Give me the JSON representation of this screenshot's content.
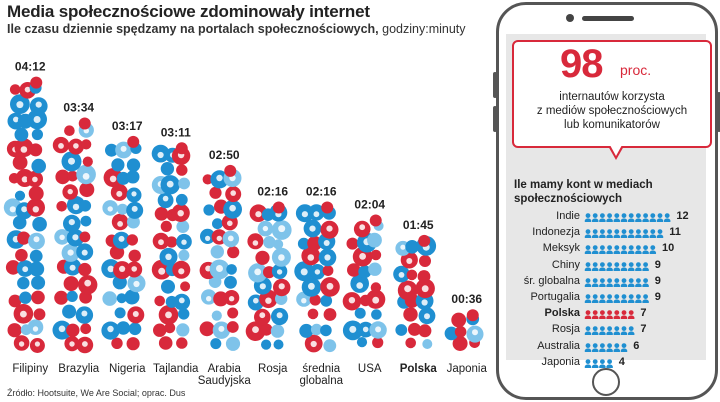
{
  "header": {
    "title": "Media społecznościowe zdominowały internet",
    "subtitle": "Ile czasu dziennie spędzamy na portalach społecznościowych,",
    "subtitle_unit": "godziny:minuty"
  },
  "source": "Źródło: Hootsuite, We Are Social; oprac. Dus",
  "colors": {
    "red": "#d8293b",
    "blue": "#1f8fd1",
    "light_blue": "#7ec3ea"
  },
  "chart_data": [
    {
      "type": "bar",
      "categories": [
        "Filipiny",
        "Brazylia",
        "Nigeria",
        "Tajlandia",
        "Arabia Saudyjska",
        "Rosja",
        "średnia globalna",
        "USA",
        "Polska",
        "Japonia"
      ],
      "category_lines": [
        [
          "Filipiny"
        ],
        [
          "Brazylia"
        ],
        [
          "Nigeria"
        ],
        [
          "Tajlandia"
        ],
        [
          "Arabia",
          "Saudyjska"
        ],
        [
          "Rosja"
        ],
        [
          "średnia",
          "globalna"
        ],
        [
          "USA"
        ],
        [
          "Polska"
        ],
        [
          "Japonia"
        ]
      ],
      "values": [
        252,
        214,
        197,
        191,
        170,
        136,
        136,
        124,
        105,
        36
      ],
      "value_labels": [
        "04:12",
        "03:34",
        "03:17",
        "03:11",
        "02:50",
        "02:16",
        "02:16",
        "02:04",
        "01:45",
        "00:36"
      ],
      "highlight": "Polska",
      "marks": "stacks of like/heart icon bubbles",
      "ylim": [
        0,
        260
      ]
    },
    {
      "type": "bar",
      "title": "Ile mamy kont w mediach społecznościowych",
      "categories": [
        "Indie",
        "Indonezja",
        "Meksyk",
        "Chiny",
        "śr. globalna",
        "Portugalia",
        "Polska",
        "Rosja",
        "Australia",
        "Japonia"
      ],
      "values": [
        12,
        11,
        10,
        9,
        9,
        9,
        7,
        7,
        6,
        4
      ],
      "highlight": "Polska",
      "orientation": "horizontal",
      "marks": "person icons, one per account"
    }
  ],
  "bubble": {
    "number": "98",
    "unit": "proc.",
    "text_lines": [
      "internautów korzysta",
      "z mediów społecznościowych",
      "lub komunikatorów"
    ]
  }
}
